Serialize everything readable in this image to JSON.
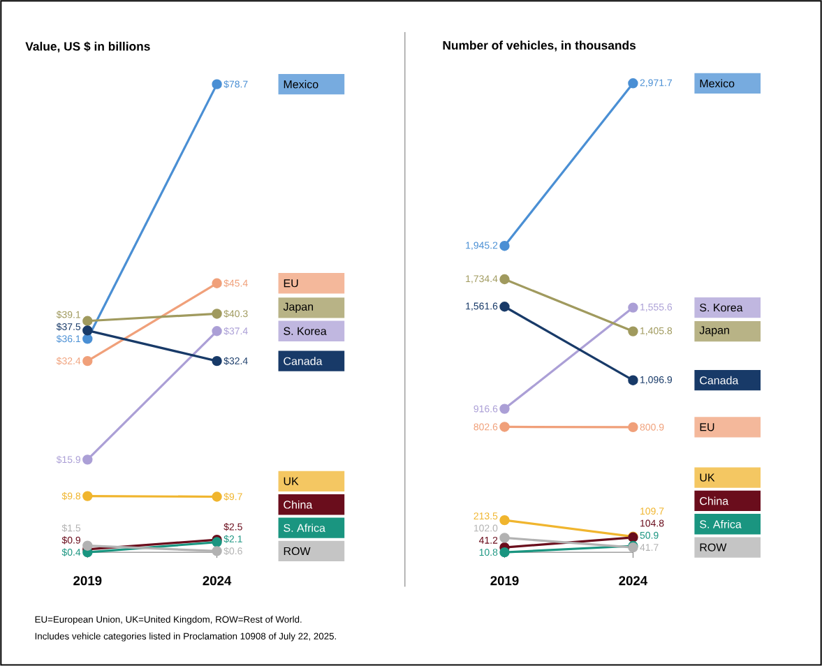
{
  "chart_data": [
    {
      "type": "line",
      "title": "Value, US $ in billions",
      "categories": [
        "2019",
        "2024"
      ],
      "marker": "circle",
      "legend": "right",
      "tick_labels": "x",
      "annotations": [
        "EU=European Union, UK=United Kingdom, ROW=Rest of World.",
        "Includes vehicle categories listed in Proclamation 10908 of July 22, 2025."
      ],
      "series": [
        {
          "name": "Mexico",
          "color": "#4a8fd4",
          "values": [
            36.1,
            78.7
          ],
          "value_labels": [
            "$36.1",
            "$78.7"
          ]
        },
        {
          "name": "EU",
          "color": "#f0a07a",
          "values": [
            32.4,
            45.4
          ],
          "value_labels": [
            "$32.4",
            "$45.4"
          ]
        },
        {
          "name": "Japan",
          "color": "#a09a5e",
          "values": [
            39.1,
            40.3
          ],
          "value_labels": [
            "$39.1",
            "$40.3"
          ]
        },
        {
          "name": "S. Korea",
          "color": "#ab9fd6",
          "values": [
            15.9,
            37.4
          ],
          "value_labels": [
            "$15.9",
            "$37.4"
          ]
        },
        {
          "name": "Canada",
          "color": "#183a68",
          "values": [
            37.5,
            32.4
          ],
          "value_labels": [
            "$37.5",
            "$32.4"
          ]
        },
        {
          "name": "UK",
          "color": "#f0b52e",
          "values": [
            9.8,
            9.7
          ],
          "value_labels": [
            "$9.8",
            "$9.7"
          ]
        },
        {
          "name": "China",
          "color": "#6a0d1c",
          "values": [
            0.9,
            2.5
          ],
          "value_labels": [
            "$0.9",
            "$2.5"
          ]
        },
        {
          "name": "S. Africa",
          "color": "#1a9580",
          "values": [
            0.4,
            2.1
          ],
          "value_labels": [
            "$0.4",
            "$2.1"
          ]
        },
        {
          "name": "ROW",
          "color": "#b2b2b2",
          "values": [
            1.5,
            0.6
          ],
          "value_labels": [
            "$1.5",
            "$0.6"
          ]
        }
      ]
    },
    {
      "type": "line",
      "title": "Number of vehicles, in thousands",
      "categories": [
        "2019",
        "2024"
      ],
      "marker": "circle",
      "legend": "right",
      "tick_labels": "x",
      "series": [
        {
          "name": "Mexico",
          "color": "#4a8fd4",
          "values": [
            1945.2,
            2971.7
          ],
          "value_labels": [
            "1,945.2",
            "2,971.7"
          ]
        },
        {
          "name": "S. Korea",
          "color": "#ab9fd6",
          "values": [
            916.6,
            1555.6
          ],
          "value_labels": [
            "916.6",
            "1,555.6"
          ]
        },
        {
          "name": "Japan",
          "color": "#a09a5e",
          "values": [
            1734.4,
            1405.8
          ],
          "value_labels": [
            "1,734.4",
            "1,405.8"
          ]
        },
        {
          "name": "Canada",
          "color": "#183a68",
          "values": [
            1561.6,
            1096.9
          ],
          "value_labels": [
            "1,561.6",
            "1,096.9"
          ]
        },
        {
          "name": "EU",
          "color": "#f0a07a",
          "values": [
            802.6,
            800.9
          ],
          "value_labels": [
            "802.6",
            "800.9"
          ]
        },
        {
          "name": "UK",
          "color": "#f0b52e",
          "values": [
            213.5,
            109.7
          ],
          "value_labels": [
            "213.5",
            "109.7"
          ]
        },
        {
          "name": "China",
          "color": "#6a0d1c",
          "values": [
            41.2,
            104.8
          ],
          "value_labels": [
            "41.2",
            "104.8"
          ]
        },
        {
          "name": "S. Africa",
          "color": "#1a9580",
          "values": [
            10.8,
            50.9
          ],
          "value_labels": [
            "10.8",
            "50.9"
          ]
        },
        {
          "name": "ROW",
          "color": "#b2b2b2",
          "values": [
            102.0,
            41.7
          ],
          "value_labels": [
            "102.0",
            "41.7"
          ]
        }
      ]
    }
  ]
}
